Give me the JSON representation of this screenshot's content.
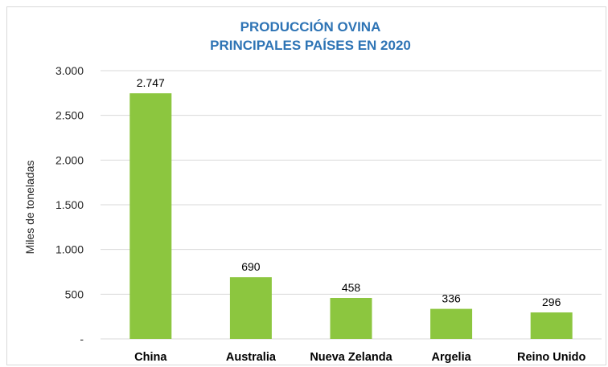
{
  "colors": {
    "bar": "#8cc63f",
    "title": "#2e74b5",
    "grid": "#d9d9d9"
  },
  "chart_data": {
    "type": "bar",
    "title": [
      "PRODUCCIÓN OVINA",
      "PRINCIPALES PAÍSES EN 2020"
    ],
    "ylabel": "Miles de toneladas",
    "xlabel": "",
    "categories": [
      "China",
      "Australia",
      "Nueva Zelanda",
      "Argelia",
      "Reino Unido"
    ],
    "values": [
      2747,
      690,
      458,
      336,
      296
    ],
    "data_labels": [
      "2.747",
      "690",
      "458",
      "336",
      "296"
    ],
    "ylim": [
      0,
      3000
    ],
    "yticks": [
      0,
      500,
      1000,
      1500,
      2000,
      2500,
      3000
    ],
    "ytick_labels": [
      "-",
      "500",
      "1.000",
      "1.500",
      "2.000",
      "2.500",
      "3.000"
    ],
    "grid": true,
    "legend": "none"
  }
}
